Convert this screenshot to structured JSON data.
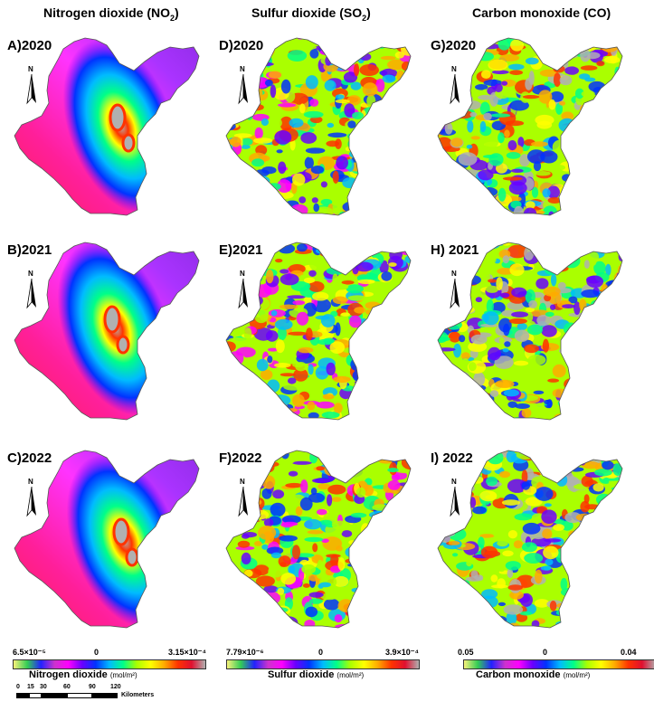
{
  "columns": [
    {
      "title": "Nitrogen dioxide (NO",
      "sub": "2",
      "close": ")"
    },
    {
      "title": "Sulfur dioxide (SO",
      "sub": "2",
      "close": ")"
    },
    {
      "title": "Carbon monoxide (CO)",
      "sub": "",
      "close": ""
    }
  ],
  "panels": [
    {
      "label": "A)2020",
      "pollutant": "NO2",
      "year": "2020"
    },
    {
      "label": "B)2021",
      "pollutant": "NO2",
      "year": "2021"
    },
    {
      "label": "C)2022",
      "pollutant": "NO2",
      "year": "2022"
    },
    {
      "label": "D)2020",
      "pollutant": "SO2",
      "year": "2020"
    },
    {
      "label": "E)2021",
      "pollutant": "SO2",
      "year": "2021"
    },
    {
      "label": "F)2022",
      "pollutant": "SO2",
      "year": "2022"
    },
    {
      "label": "G)2020",
      "pollutant": "CO",
      "year": "2020"
    },
    {
      "label": "H) 2021",
      "pollutant": "CO",
      "year": "2021"
    },
    {
      "label": "I) 2022",
      "pollutant": "CO",
      "year": "2022"
    }
  ],
  "north_label": "N",
  "legends": [
    {
      "min": "6.5×10⁻⁵",
      "mid": "0",
      "max": "3.15×10⁻⁴",
      "title": "Nitrogen dioxide",
      "unit": "(mol/m²)"
    },
    {
      "min": "7.79×10⁻⁶",
      "mid": "0",
      "max": "3.9×10⁻⁴",
      "title": "Sulfur dioxide",
      "unit": "(mol/m²)"
    },
    {
      "min": "0.05",
      "mid": "0",
      "max": "0.04",
      "title": "Carbon monoxide",
      "unit": "(mol/m²)"
    }
  ],
  "colors": {
    "ramp": [
      "#f7f27a",
      "#33cc55",
      "#2222ff",
      "#cc33cc",
      "#ff00ff",
      "#6a00ff",
      "#0033ff",
      "#00bbff",
      "#00ff88",
      "#aaff00",
      "#ffff00",
      "#ffaa00",
      "#ff3300",
      "#e01030",
      "#b0b0b0"
    ],
    "no2_background": "#ff1f9a",
    "outline": "#555555"
  },
  "scalebar": {
    "ticks": [
      "0",
      "15",
      "30",
      "60",
      "90",
      "120"
    ],
    "unit": "Kilometers"
  }
}
